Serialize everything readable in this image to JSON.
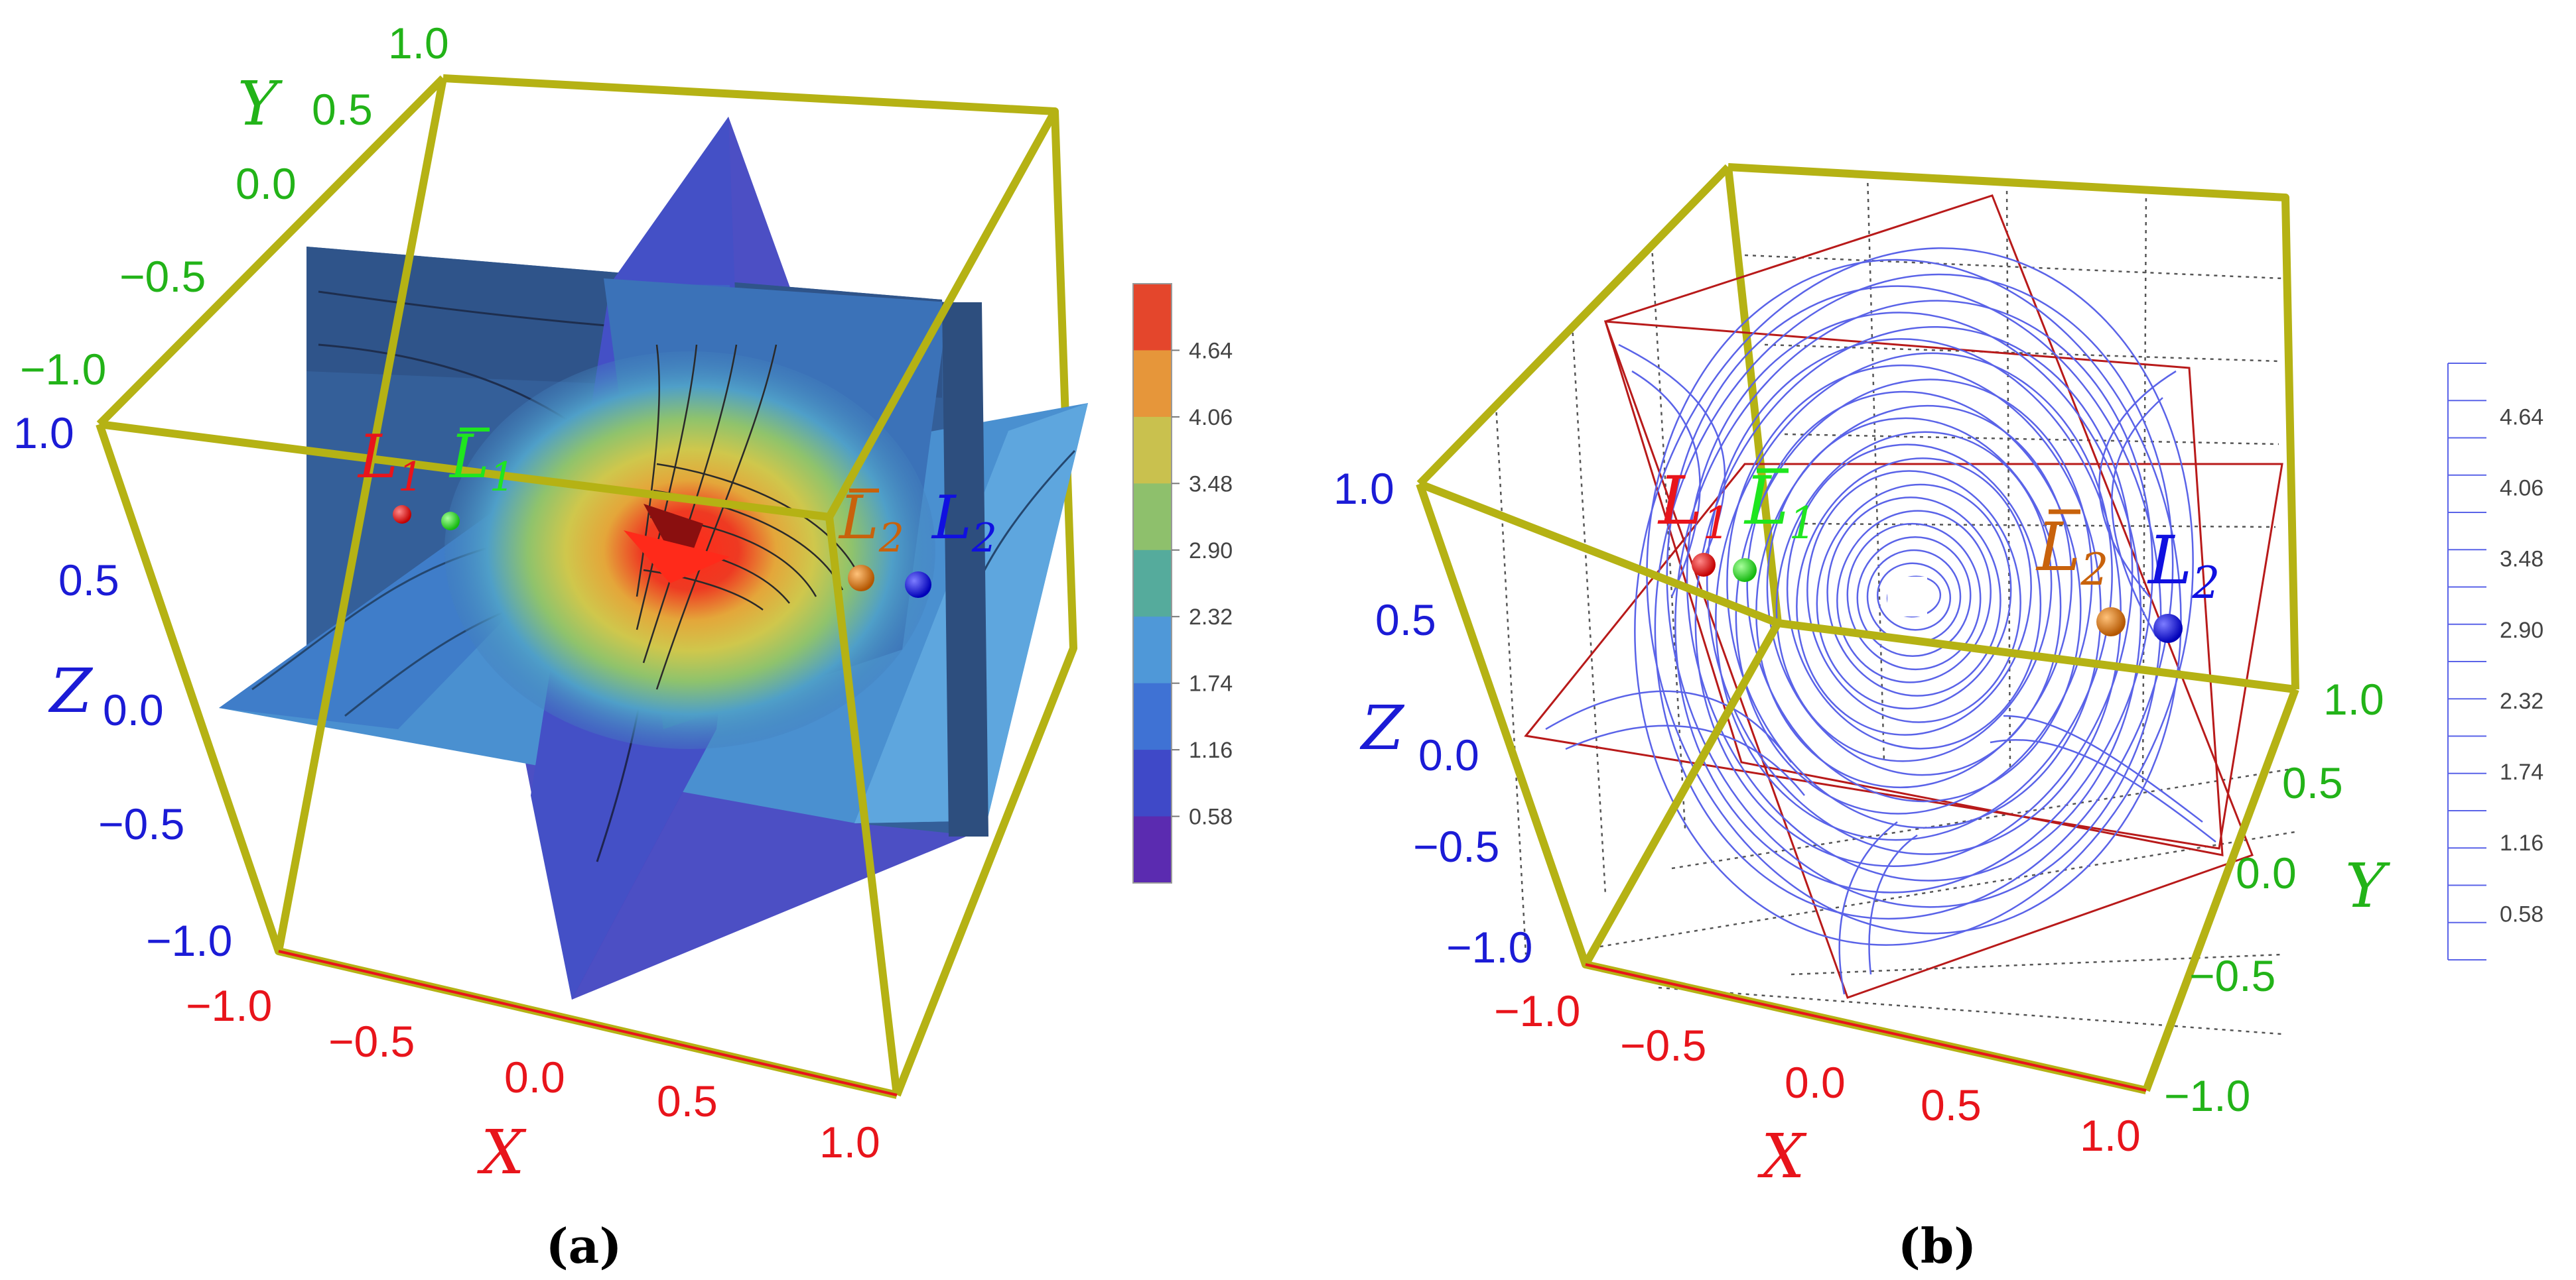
{
  "colors": {
    "box": "#b5b214",
    "x_axis": "#e8141b",
    "y_axis": "#22b318",
    "z_axis": "#1b1bd6",
    "L1": "#e8141b",
    "L1bar": "#1fe61f",
    "L2bar": "#c8620c",
    "L2": "#1010e0",
    "contour_line_b": "#5a63e8",
    "plane_frame_b": "#b81a1a"
  },
  "chart_data": [
    {
      "panel_label": "(a)",
      "type": "contour3d",
      "axes": {
        "x": {
          "label": "X",
          "ticks": [
            "−1.0",
            "−0.5",
            "0.0",
            "0.5",
            "1.0"
          ],
          "range": [
            -1,
            1
          ]
        },
        "y": {
          "label": "Y",
          "ticks": [
            "−1.0",
            "−0.5",
            "0.0",
            "0.5",
            "1.0"
          ],
          "range": [
            -1,
            1
          ]
        },
        "z": {
          "label": "Z",
          "ticks": [
            "−1.0",
            "−0.5",
            "0.0",
            "0.5",
            "1.0"
          ],
          "range": [
            -1,
            1
          ]
        }
      },
      "points": [
        {
          "name": "L",
          "sub": "1",
          "bar": false
        },
        {
          "name": "L",
          "sub": "1",
          "bar": true
        },
        {
          "name": "L",
          "sub": "2",
          "bar": true
        },
        {
          "name": "L",
          "sub": "2",
          "bar": false
        }
      ],
      "legend": {
        "type": "color_bar",
        "tick_labels": [
          "4.64",
          "4.06",
          "3.48",
          "2.90",
          "2.32",
          "1.74",
          "1.16",
          "0.58"
        ],
        "levels": [
          0.58,
          1.16,
          1.74,
          2.32,
          2.9,
          3.48,
          4.06,
          4.64
        ],
        "colors": [
          "#5b2bb0",
          "#3f49c8",
          "#3f72d4",
          "#4f98d8",
          "#55ab9c",
          "#8ec06c",
          "#c9c14e",
          "#e6963a",
          "#e4462c"
        ]
      }
    },
    {
      "panel_label": "(b)",
      "type": "contour3d_lines",
      "axes": {
        "x": {
          "label": "X",
          "ticks": [
            "−1.0",
            "−0.5",
            "0.0",
            "0.5",
            "1.0"
          ],
          "range": [
            -1,
            1
          ]
        },
        "y": {
          "label": "Y",
          "ticks": [
            "−1.0",
            "−0.5",
            "0.0",
            "0.5",
            "1.0"
          ],
          "range": [
            -1,
            1
          ]
        },
        "z": {
          "label": "Z",
          "ticks": [
            "−1.0",
            "−0.5",
            "0.0",
            "0.5",
            "1.0"
          ],
          "range": [
            -1,
            1
          ]
        }
      },
      "points": [
        {
          "name": "L",
          "sub": "1",
          "bar": false
        },
        {
          "name": "L",
          "sub": "1",
          "bar": true
        },
        {
          "name": "L",
          "sub": "2",
          "bar": true
        },
        {
          "name": "L",
          "sub": "2",
          "bar": false
        }
      ],
      "legend": {
        "type": "line_bar",
        "tick_labels": [
          "4.64",
          "4.06",
          "3.48",
          "2.90",
          "2.32",
          "1.74",
          "1.16",
          "0.58"
        ],
        "levels": [
          0.58,
          1.16,
          1.74,
          2.32,
          2.9,
          3.48,
          4.06,
          4.64
        ]
      }
    }
  ]
}
